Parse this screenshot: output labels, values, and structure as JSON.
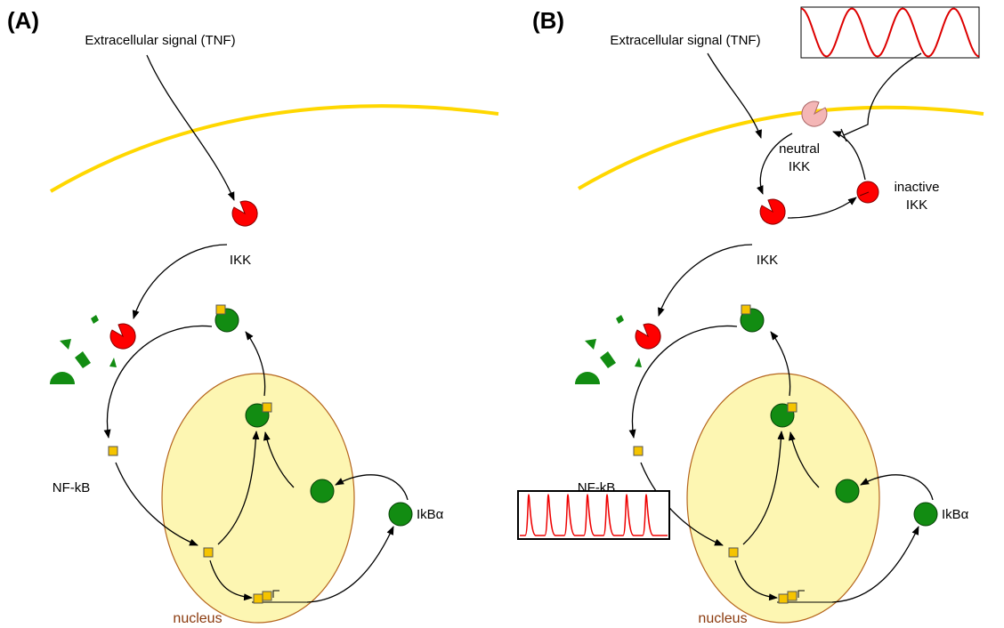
{
  "panels": [
    {
      "label": "(A)",
      "signal": "Extracellular signal (TNF)",
      "ikk": "IKK",
      "nfkb": "NF-kB",
      "ikba": "IkBα",
      "nucleus": "nucleus"
    },
    {
      "label": "(B)",
      "signal": "Extracellular signal (TNF)",
      "neutral_ikk": [
        "neutral",
        "IKK"
      ],
      "inactive_ikk": [
        "inactive",
        "IKK"
      ],
      "ikk": "IKK",
      "nfkb": "NF-kB",
      "ikba": "IkBα",
      "nucleus": "nucleus"
    }
  ]
}
